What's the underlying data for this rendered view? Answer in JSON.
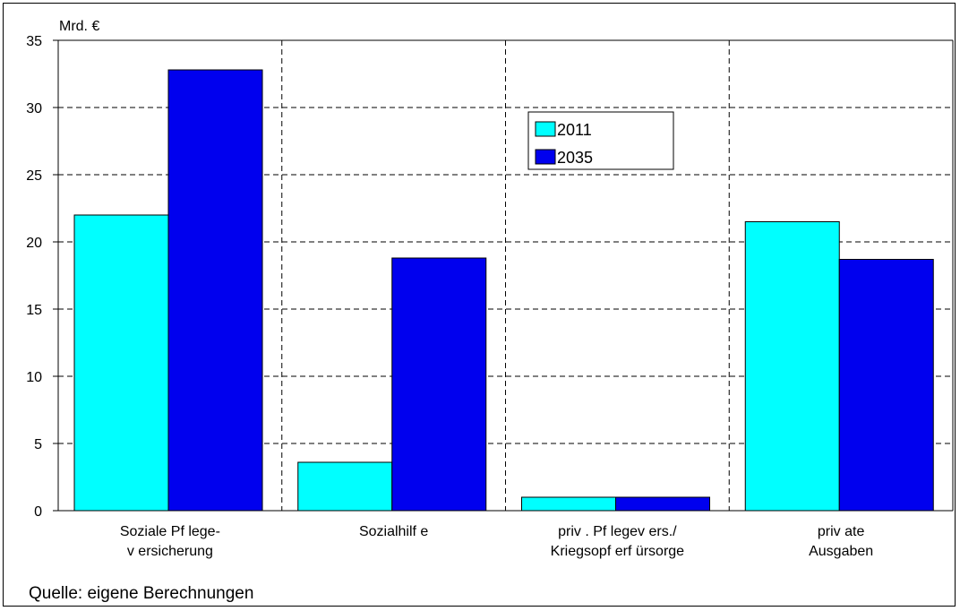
{
  "chart_data": {
    "type": "bar",
    "unit_label": "Mrd. €",
    "categories": [
      [
        "Soziale Pf lege-",
        "v ersicherung"
      ],
      [
        "Sozialhilf e"
      ],
      [
        "priv . Pf legev ers./",
        "Kriegsopf erf ürsorge"
      ],
      [
        "priv ate",
        "Ausgaben"
      ]
    ],
    "series": [
      {
        "name": "2011",
        "color": "#00ffff",
        "values": [
          22.0,
          3.6,
          1.0,
          21.5
        ]
      },
      {
        "name": "2035",
        "color": "#0000ee",
        "values": [
          32.8,
          18.8,
          1.0,
          18.7
        ]
      }
    ],
    "ylim": [
      0,
      35
    ],
    "yticks": [
      0,
      5,
      10,
      15,
      20,
      25,
      30,
      35
    ],
    "grid": true,
    "legend_position": "top-center"
  },
  "source_note": "Quelle: eigene Berechnungen"
}
